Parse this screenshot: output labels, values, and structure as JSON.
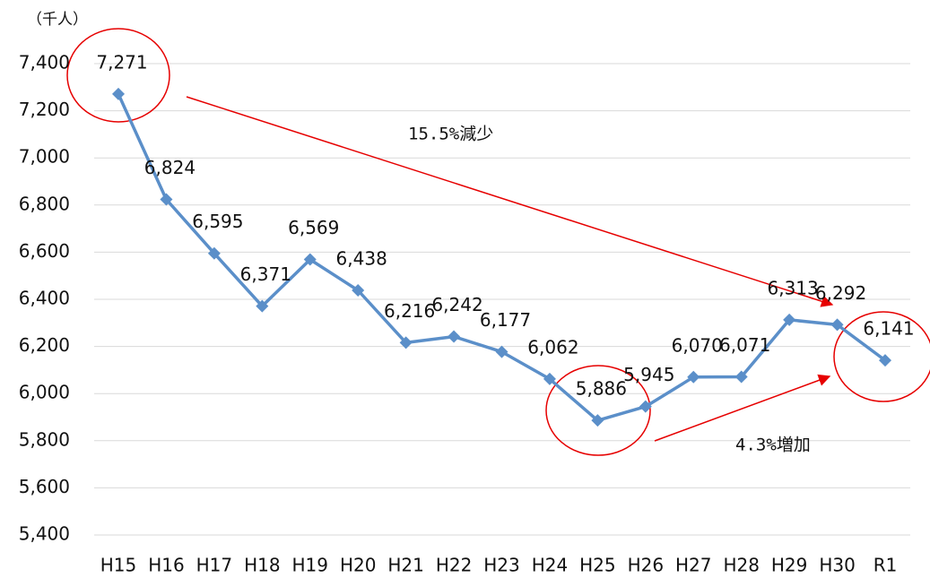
{
  "chart_data": {
    "type": "line",
    "y_label": "（千人）",
    "categories": [
      "H15",
      "H16",
      "H17",
      "H18",
      "H19",
      "H20",
      "H21",
      "H22",
      "H23",
      "H24",
      "H25",
      "H26",
      "H27",
      "H28",
      "H29",
      "H30",
      "R1"
    ],
    "series": [
      {
        "name": null,
        "color": "#5b8fc9",
        "values": [
          7271,
          6824,
          6595,
          6371,
          6569,
          6438,
          6216,
          6242,
          6177,
          6062,
          5886,
          5945,
          6070,
          6071,
          6313,
          6292,
          6141
        ],
        "value_labels": [
          "7,271",
          "6,824",
          "6,595",
          "6,371",
          "6,569",
          "6,438",
          "6,216",
          "6,242",
          "6,177",
          "6,062",
          "5,886",
          "5,945",
          "6,070",
          "6,071",
          "6,313",
          "6,292",
          "6,141"
        ]
      }
    ],
    "ylim": [
      5400,
      7400
    ],
    "yticks": [
      {
        "value": 5400,
        "label": "5,400"
      },
      {
        "value": 5600,
        "label": "5,600"
      },
      {
        "value": 5800,
        "label": "5,800"
      },
      {
        "value": 6000,
        "label": "6,000"
      },
      {
        "value": 6200,
        "label": "6,200"
      },
      {
        "value": 6400,
        "label": "6,400"
      },
      {
        "value": 6600,
        "label": "6,600"
      },
      {
        "value": 6800,
        "label": "6,800"
      },
      {
        "value": 7000,
        "label": "7,000"
      },
      {
        "value": 7200,
        "label": "7,200"
      },
      {
        "value": 7400,
        "label": "7,400"
      }
    ],
    "grid": true,
    "annotations": [
      "15.5%減少",
      "4.3%増加"
    ]
  }
}
